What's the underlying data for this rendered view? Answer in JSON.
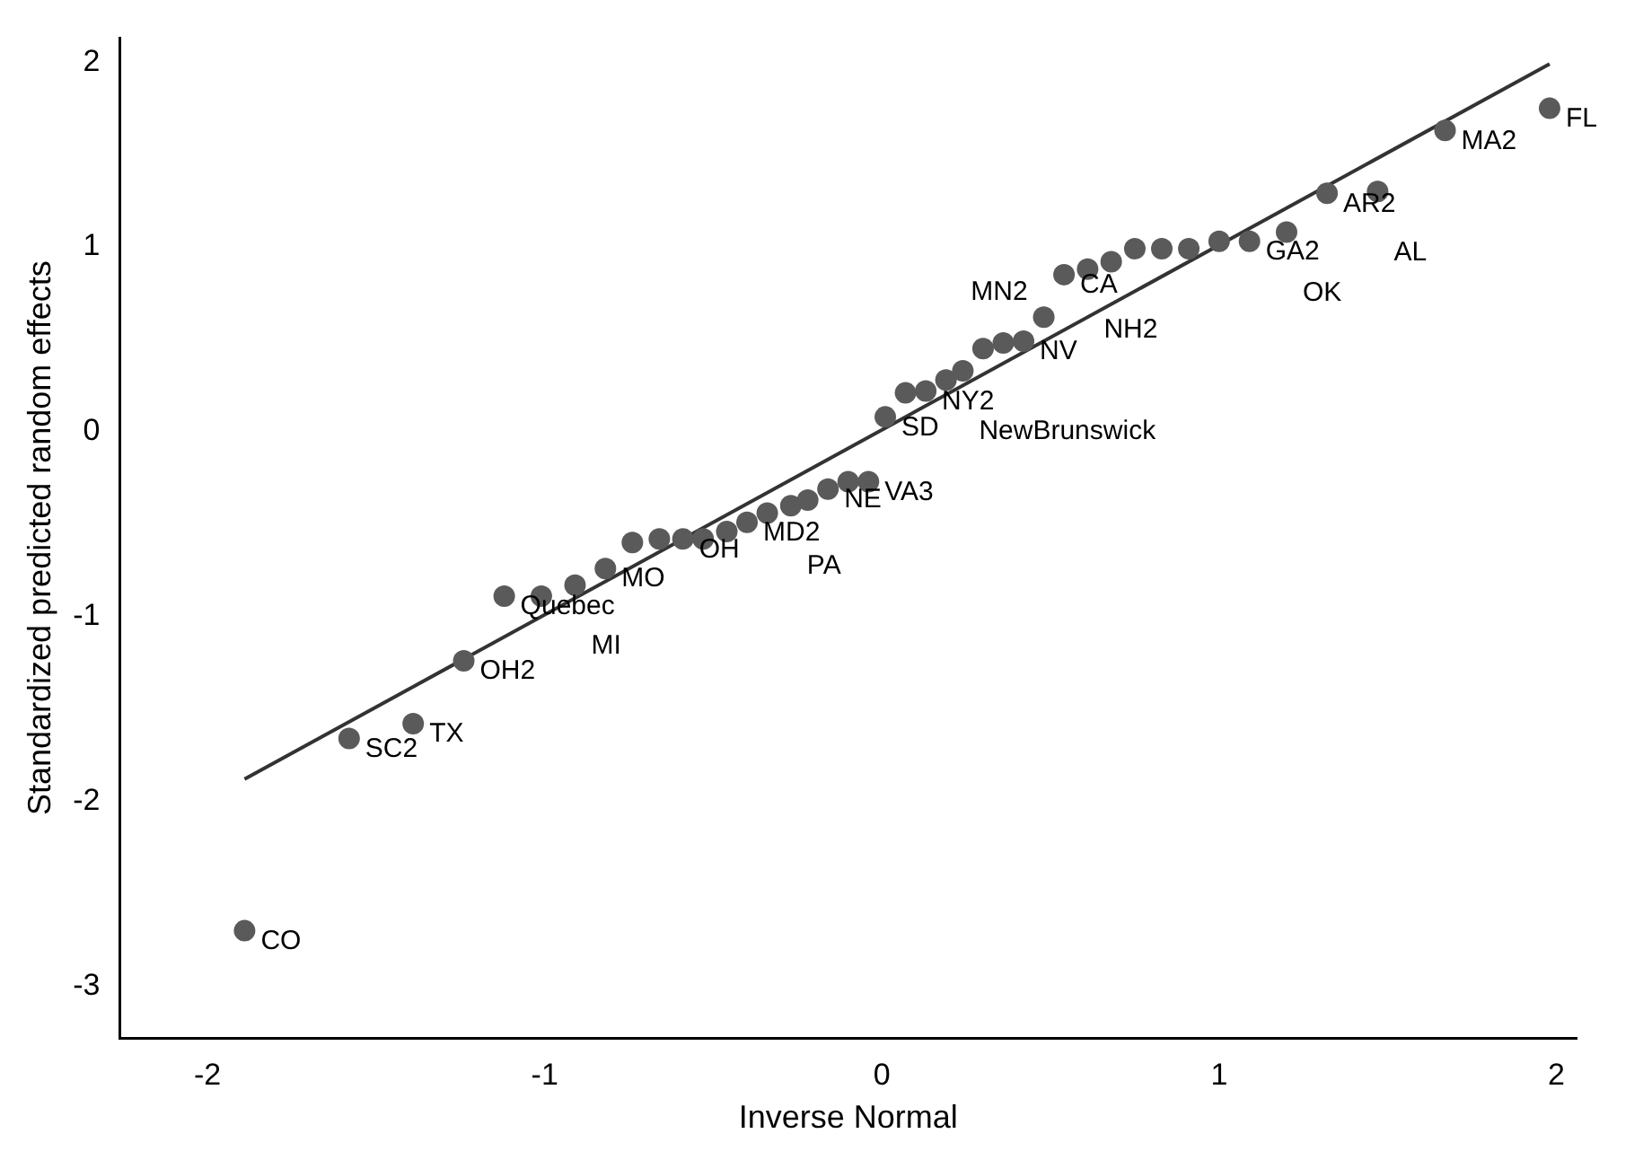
{
  "chart_data": {
    "type": "scatter",
    "xlabel": "Inverse Normal",
    "ylabel": "Standardized predicted random effects",
    "xlim": [
      -2.26,
      2.06
    ],
    "ylim": [
      -3.28,
      2.13
    ],
    "xticks": [
      -2,
      -1,
      0,
      1,
      2
    ],
    "yticks": [
      -3,
      -2,
      -1,
      0,
      1,
      2
    ],
    "grid": false,
    "legend": false,
    "series": [
      {
        "color": "#5a5a5a",
        "marker": "circle",
        "x": [
          -1.89,
          -1.58,
          -1.39,
          -1.24,
          -1.12,
          -1.01,
          -0.91,
          -0.82,
          -0.74,
          -0.66,
          -0.59,
          -0.53,
          -0.46,
          -0.4,
          -0.34,
          -0.27,
          -0.22,
          -0.16,
          -0.1,
          -0.04,
          0.01,
          0.07,
          0.13,
          0.19,
          0.24,
          0.3,
          0.36,
          0.42,
          0.48,
          0.54,
          0.61,
          0.68,
          0.75,
          0.83,
          0.91,
          1.0,
          1.09,
          1.2,
          1.32,
          1.47,
          1.67,
          1.98
        ],
        "values": [
          -2.7,
          -1.66,
          -1.58,
          -1.24,
          -0.89,
          -0.89,
          -0.83,
          -0.74,
          -0.6,
          -0.58,
          -0.58,
          -0.58,
          -0.54,
          -0.49,
          -0.44,
          -0.4,
          -0.37,
          -0.31,
          -0.27,
          -0.27,
          0.08,
          0.21,
          0.22,
          0.28,
          0.33,
          0.45,
          0.48,
          0.49,
          0.62,
          0.85,
          0.88,
          0.92,
          0.99,
          0.99,
          0.99,
          1.03,
          1.03,
          1.08,
          1.29,
          1.3,
          1.63,
          1.75
        ]
      },
      {
        "type": "line",
        "color": "#333333",
        "x": [
          -1.89,
          1.98
        ],
        "values": [
          -1.88,
          1.99
        ]
      }
    ],
    "annotations": [
      {
        "text": "CO",
        "x": -1.89,
        "y": -2.7
      },
      {
        "text": "SC2",
        "x": -1.58,
        "y": -1.66
      },
      {
        "text": "TX",
        "x": -1.39,
        "y": -1.58
      },
      {
        "text": "OH2",
        "x": -1.24,
        "y": -1.24
      },
      {
        "text": "Quebec",
        "x": -1.12,
        "y": -0.89
      },
      {
        "text": "MI",
        "x": -0.91,
        "y": -0.83
      },
      {
        "text": "MO",
        "x": -0.82,
        "y": -0.74
      },
      {
        "text": "OH",
        "x": -0.59,
        "y": -0.58
      },
      {
        "text": "MD2",
        "x": -0.4,
        "y": -0.49
      },
      {
        "text": "PA",
        "x": -0.27,
        "y": -0.4
      },
      {
        "text": "NE",
        "x": -0.16,
        "y": -0.31
      },
      {
        "text": "VA3",
        "x": -0.04,
        "y": -0.27
      },
      {
        "text": "SD",
        "x": 0.01,
        "y": 0.08
      },
      {
        "text": "NY2",
        "x": 0.13,
        "y": 0.22
      },
      {
        "text": "NewBrunswick",
        "x": 0.24,
        "y": 0.33
      },
      {
        "text": "NV",
        "x": 0.42,
        "y": 0.49
      },
      {
        "text": "MN2",
        "x": 0.48,
        "y": 0.62
      },
      {
        "text": "CA",
        "x": 0.54,
        "y": 0.85
      },
      {
        "text": "NH2",
        "x": 0.61,
        "y": 0.88
      },
      {
        "text": "GA2",
        "x": 1.09,
        "y": 1.03
      },
      {
        "text": "OK",
        "x": 1.2,
        "y": 1.08
      },
      {
        "text": "AR2",
        "x": 1.32,
        "y": 1.29
      },
      {
        "text": "AL",
        "x": 1.47,
        "y": 1.3
      },
      {
        "text": "MA2",
        "x": 1.67,
        "y": 1.63
      },
      {
        "text": "FL",
        "x": 1.98,
        "y": 1.75
      }
    ]
  }
}
